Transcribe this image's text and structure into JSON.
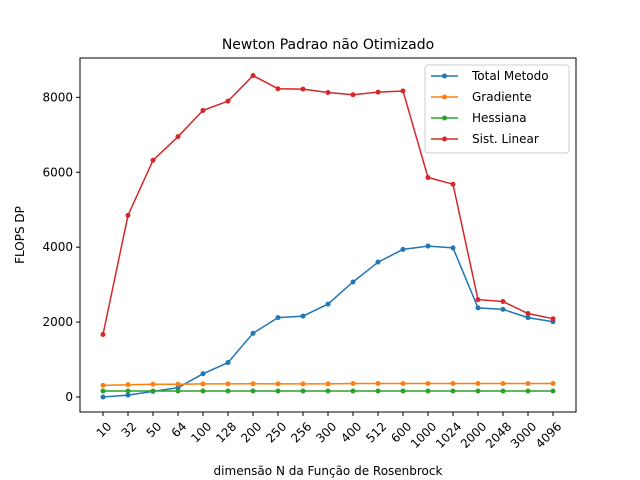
{
  "chart_data": {
    "type": "line",
    "title": "Newton Padrao não Otimizado",
    "xlabel": "dimensão N da Função de Rosenbrock",
    "ylabel": "FLOPS DP",
    "categories": [
      "10",
      "32",
      "50",
      "64",
      "100",
      "128",
      "200",
      "250",
      "256",
      "300",
      "400",
      "512",
      "600",
      "1000",
      "1024",
      "2000",
      "2048",
      "3000",
      "4096"
    ],
    "ylim": [
      -400,
      9050
    ],
    "yticks": [
      0,
      2000,
      4000,
      6000,
      8000
    ],
    "grid": false,
    "legend_position": "top-right",
    "series": [
      {
        "name": "Total Metodo",
        "color": "#1f77b4",
        "values": [
          0,
          50,
          150,
          250,
          620,
          920,
          1700,
          2120,
          2160,
          2480,
          3070,
          3600,
          3940,
          4030,
          3980,
          2380,
          2340,
          2120,
          2010
        ]
      },
      {
        "name": "Gradiente",
        "color": "#ff7f0e",
        "values": [
          310,
          330,
          340,
          340,
          350,
          350,
          355,
          350,
          350,
          350,
          360,
          360,
          360,
          360,
          360,
          360,
          360,
          360,
          360
        ]
      },
      {
        "name": "Hessiana",
        "color": "#2ca02c",
        "values": [
          160,
          160,
          160,
          160,
          160,
          160,
          160,
          160,
          160,
          160,
          160,
          160,
          160,
          160,
          160,
          160,
          160,
          160,
          160
        ]
      },
      {
        "name": "Sist. Linear",
        "color": "#d62728",
        "values": [
          1670,
          4850,
          6320,
          6950,
          7650,
          7900,
          8580,
          8230,
          8220,
          8130,
          8070,
          8140,
          8170,
          5860,
          5680,
          2600,
          2550,
          2230,
          2090
        ]
      }
    ]
  }
}
